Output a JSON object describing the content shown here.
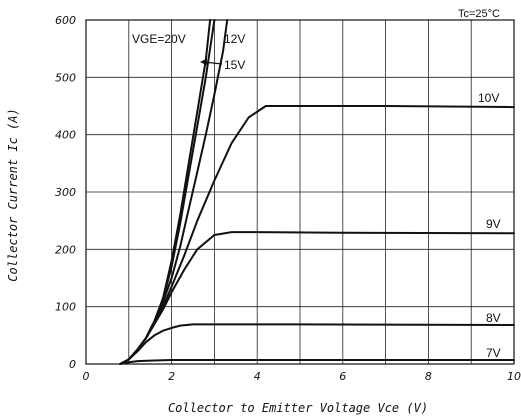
{
  "chart_data": {
    "type": "line",
    "condition": "Tc=25°C",
    "xlabel": "Collector to Emitter Voltage Vce (V)",
    "ylabel": "Collector Current Ic (A)",
    "xlim": [
      0,
      10
    ],
    "ylim": [
      0,
      600
    ],
    "x_ticks": [
      0,
      2,
      4,
      6,
      8,
      10
    ],
    "y_ticks": [
      0,
      100,
      200,
      300,
      400,
      500,
      600
    ],
    "grid": true,
    "series": [
      {
        "name": "VGE=20V",
        "x": [
          0.8,
          1.0,
          1.2,
          1.4,
          1.6,
          1.8,
          2.0,
          2.2,
          2.4,
          2.6,
          2.8,
          2.9
        ],
        "y": [
          0,
          8,
          25,
          45,
          75,
          115,
          180,
          260,
          350,
          440,
          530,
          600
        ]
      },
      {
        "name": "15V",
        "x": [
          0.8,
          1.0,
          1.2,
          1.4,
          1.6,
          1.8,
          2.0,
          2.2,
          2.4,
          2.6,
          2.8,
          3.0
        ],
        "y": [
          0,
          8,
          25,
          45,
          75,
          112,
          170,
          245,
          330,
          415,
          500,
          600
        ]
      },
      {
        "name": "12V",
        "x": [
          0.8,
          1.0,
          1.2,
          1.4,
          1.6,
          1.8,
          2.0,
          2.2,
          2.4,
          2.6,
          2.8,
          3.0,
          3.2,
          3.3
        ],
        "y": [
          0,
          8,
          25,
          45,
          75,
          108,
          150,
          205,
          270,
          335,
          400,
          470,
          545,
          600
        ]
      },
      {
        "name": "10V",
        "x": [
          0.8,
          1.0,
          1.2,
          1.4,
          1.6,
          1.8,
          2.0,
          2.3,
          2.6,
          3.0,
          3.4,
          3.8,
          4.2,
          5.0,
          7.0,
          10.0
        ],
        "y": [
          0,
          8,
          25,
          45,
          70,
          100,
          135,
          190,
          250,
          320,
          385,
          430,
          450,
          450,
          450,
          448
        ]
      },
      {
        "name": "9V",
        "x": [
          0.8,
          1.0,
          1.2,
          1.4,
          1.6,
          1.8,
          2.0,
          2.3,
          2.6,
          3.0,
          3.4,
          4.0,
          6.0,
          10.0
        ],
        "y": [
          0,
          8,
          25,
          45,
          70,
          95,
          125,
          165,
          200,
          225,
          230,
          230,
          229,
          228
        ]
      },
      {
        "name": "8V",
        "x": [
          0.8,
          1.0,
          1.2,
          1.4,
          1.6,
          1.8,
          2.0,
          2.2,
          2.5,
          3.0,
          5.0,
          10.0
        ],
        "y": [
          0,
          8,
          22,
          38,
          50,
          58,
          63,
          67,
          69,
          69,
          69,
          68
        ]
      },
      {
        "name": "7V",
        "x": [
          0.8,
          1.0,
          1.2,
          1.5,
          2.0,
          3.0,
          10.0
        ],
        "y": [
          0,
          3,
          5,
          6,
          7,
          7,
          7
        ]
      }
    ]
  }
}
